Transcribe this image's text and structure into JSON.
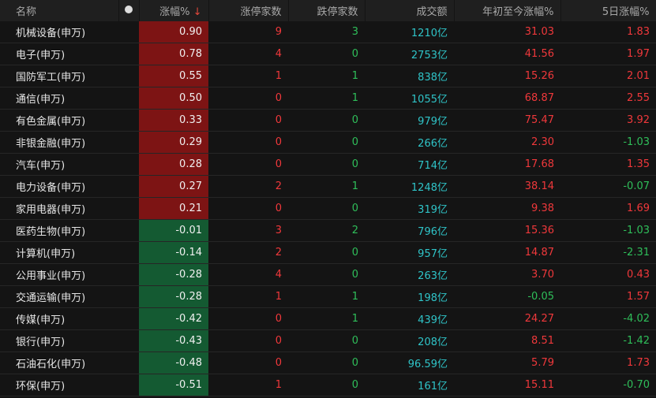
{
  "header": {
    "name": "名称",
    "change": "涨幅%",
    "sort_arrow": "↓",
    "limit_up": "涨停家数",
    "limit_down": "跌停家数",
    "turnover": "成交额",
    "ytd": "年初至今涨幅%",
    "five_day": "5日涨幅%"
  },
  "colors": {
    "up": "#f0383b",
    "down": "#2fbf5a",
    "turnover": "#2fc4c8",
    "up_bg": "#7d1414",
    "down_bg": "#145a32"
  },
  "rows": [
    {
      "name": "机械设备(申万)",
      "change": "0.90",
      "limit_up": "9",
      "limit_down": "3",
      "turnover": "1210亿",
      "ytd": "31.03",
      "five_day": "1.83"
    },
    {
      "name": "电子(申万)",
      "change": "0.78",
      "limit_up": "4",
      "limit_down": "0",
      "turnover": "2753亿",
      "ytd": "41.56",
      "five_day": "1.97"
    },
    {
      "name": "国防军工(申万)",
      "change": "0.55",
      "limit_up": "1",
      "limit_down": "1",
      "turnover": "838亿",
      "ytd": "15.26",
      "five_day": "2.01"
    },
    {
      "name": "通信(申万)",
      "change": "0.50",
      "limit_up": "0",
      "limit_down": "1",
      "turnover": "1055亿",
      "ytd": "68.87",
      "five_day": "2.55"
    },
    {
      "name": "有色金属(申万)",
      "change": "0.33",
      "limit_up": "0",
      "limit_down": "0",
      "turnover": "979亿",
      "ytd": "75.47",
      "five_day": "3.92"
    },
    {
      "name": "非银金融(申万)",
      "change": "0.29",
      "limit_up": "0",
      "limit_down": "0",
      "turnover": "266亿",
      "ytd": "2.30",
      "five_day": "-1.03"
    },
    {
      "name": "汽车(申万)",
      "change": "0.28",
      "limit_up": "0",
      "limit_down": "0",
      "turnover": "714亿",
      "ytd": "17.68",
      "five_day": "1.35"
    },
    {
      "name": "电力设备(申万)",
      "change": "0.27",
      "limit_up": "2",
      "limit_down": "1",
      "turnover": "1248亿",
      "ytd": "38.14",
      "five_day": "-0.07"
    },
    {
      "name": "家用电器(申万)",
      "change": "0.21",
      "limit_up": "0",
      "limit_down": "0",
      "turnover": "319亿",
      "ytd": "9.38",
      "five_day": "1.69"
    },
    {
      "name": "医药生物(申万)",
      "change": "-0.01",
      "limit_up": "3",
      "limit_down": "2",
      "turnover": "796亿",
      "ytd": "15.36",
      "five_day": "-1.03"
    },
    {
      "name": "计算机(申万)",
      "change": "-0.14",
      "limit_up": "2",
      "limit_down": "0",
      "turnover": "957亿",
      "ytd": "14.87",
      "five_day": "-2.31"
    },
    {
      "name": "公用事业(申万)",
      "change": "-0.28",
      "limit_up": "4",
      "limit_down": "0",
      "turnover": "263亿",
      "ytd": "3.70",
      "five_day": "0.43"
    },
    {
      "name": "交通运输(申万)",
      "change": "-0.28",
      "limit_up": "1",
      "limit_down": "1",
      "turnover": "198亿",
      "ytd": "-0.05",
      "five_day": "1.57"
    },
    {
      "name": "传媒(申万)",
      "change": "-0.42",
      "limit_up": "0",
      "limit_down": "1",
      "turnover": "439亿",
      "ytd": "24.27",
      "five_day": "-4.02"
    },
    {
      "name": "银行(申万)",
      "change": "-0.43",
      "limit_up": "0",
      "limit_down": "0",
      "turnover": "208亿",
      "ytd": "8.51",
      "five_day": "-1.42"
    },
    {
      "name": "石油石化(申万)",
      "change": "-0.48",
      "limit_up": "0",
      "limit_down": "0",
      "turnover": "96.59亿",
      "ytd": "5.79",
      "five_day": "1.73"
    },
    {
      "name": "环保(申万)",
      "change": "-0.51",
      "limit_up": "1",
      "limit_down": "0",
      "turnover": "161亿",
      "ytd": "15.11",
      "five_day": "-0.70"
    }
  ]
}
